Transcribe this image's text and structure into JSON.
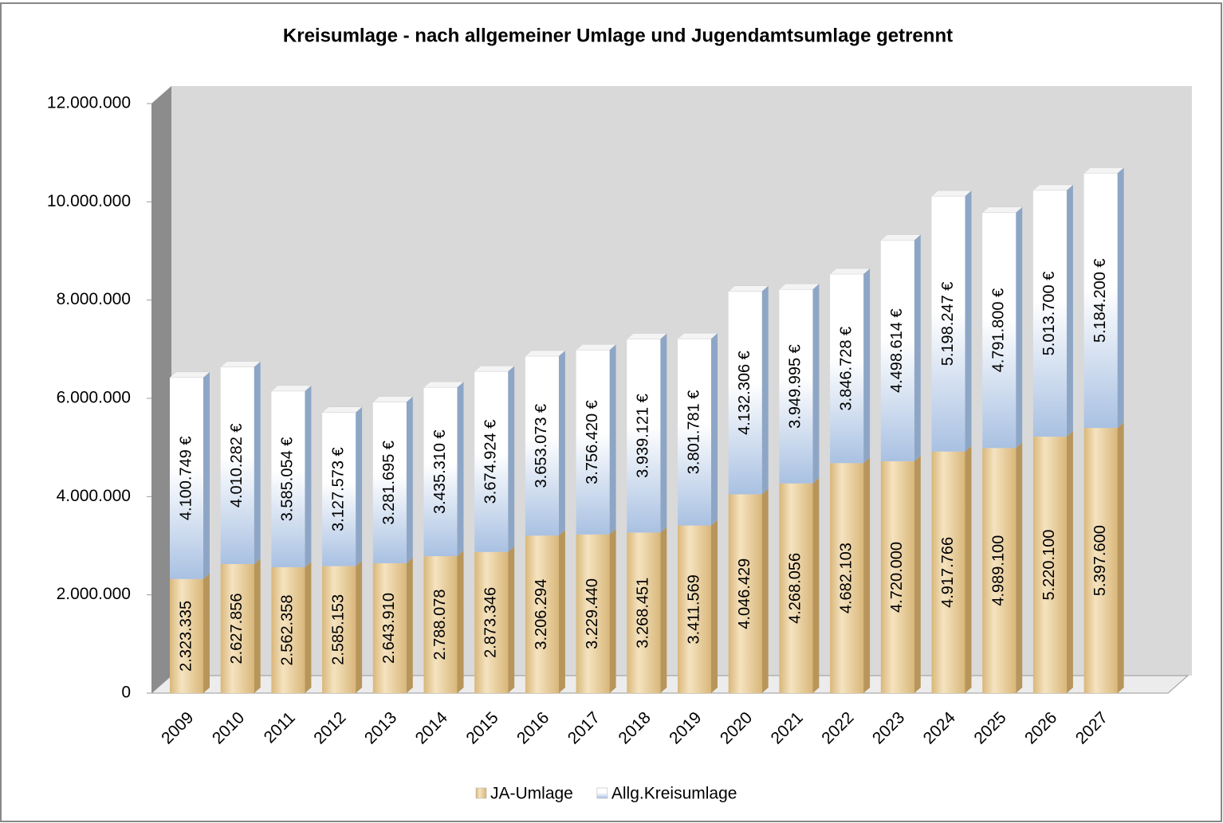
{
  "chart_data": {
    "type": "bar",
    "stacked": true,
    "title": "Kreisumlage - nach allgemeiner Umlage und Jugendamtsumlage getrennt",
    "categories": [
      "2009",
      "2010",
      "2011",
      "2012",
      "2013",
      "2014",
      "2015",
      "2016",
      "2017",
      "2018",
      "2019",
      "2020",
      "2021",
      "2022",
      "2023",
      "2024",
      "2025",
      "2026",
      "2027"
    ],
    "series": [
      {
        "name": "JA-Umlage",
        "color": "#d9b77a",
        "values": [
          2323335,
          2627856,
          2562358,
          2585153,
          2643910,
          2788078,
          2873346,
          3206294,
          3229440,
          3268451,
          3411569,
          4046429,
          4268056,
          4682103,
          4720000,
          4917766,
          4989100,
          5220100,
          5397600
        ],
        "value_labels": [
          "2.323.335",
          "2.627.856",
          "2.562.358",
          "2.585.153",
          "2.643.910",
          "2.788.078",
          "2.873.346",
          "3.206.294",
          "3.229.440",
          "3.268.451",
          "3.411.569",
          "4.046.429",
          "4.268.056",
          "4.682.103",
          "4.720.000",
          "4.917.766",
          "4.989.100",
          "5.220.100",
          "5.397.600"
        ]
      },
      {
        "name": "Allg.Kreisumlage",
        "color": "#a9c1e2",
        "values": [
          4100749,
          4010282,
          3585054,
          3127573,
          3281695,
          3435310,
          3674924,
          3653073,
          3756420,
          3939121,
          3801781,
          4132306,
          3949995,
          3846728,
          4498614,
          5198247,
          4791800,
          5013700,
          5184200
        ],
        "value_labels": [
          "4.100.749 €",
          "4.010.282 €",
          "3.585.054 €",
          "3.127.573 €",
          "3.281.695 €",
          "3.435.310 €",
          "3.674.924 €",
          "3.653.073 €",
          "3.756.420 €",
          "3.939.121 €",
          "3.801.781 €",
          "4.132.306 €",
          "3.949.995 €",
          "3.846.728 €",
          "4.498.614 €",
          "5.198.247 €",
          "4.791.800 €",
          "5.013.700 €",
          "5.184.200 €"
        ]
      }
    ],
    "ylim": [
      0,
      12000000
    ],
    "yticks": [
      0,
      {
        "value": 2000000,
        "label": "2.000.000"
      },
      {
        "value": 4000000,
        "label": "4.000.000"
      },
      {
        "value": 6000000,
        "label": "6.000.000"
      },
      {
        "value": 8000000,
        "label": "8.000.000"
      },
      {
        "value": 10000000,
        "label": "10.000.000"
      },
      {
        "value": 12000000,
        "label": "12.000.000"
      }
    ],
    "legend": "bottom"
  }
}
